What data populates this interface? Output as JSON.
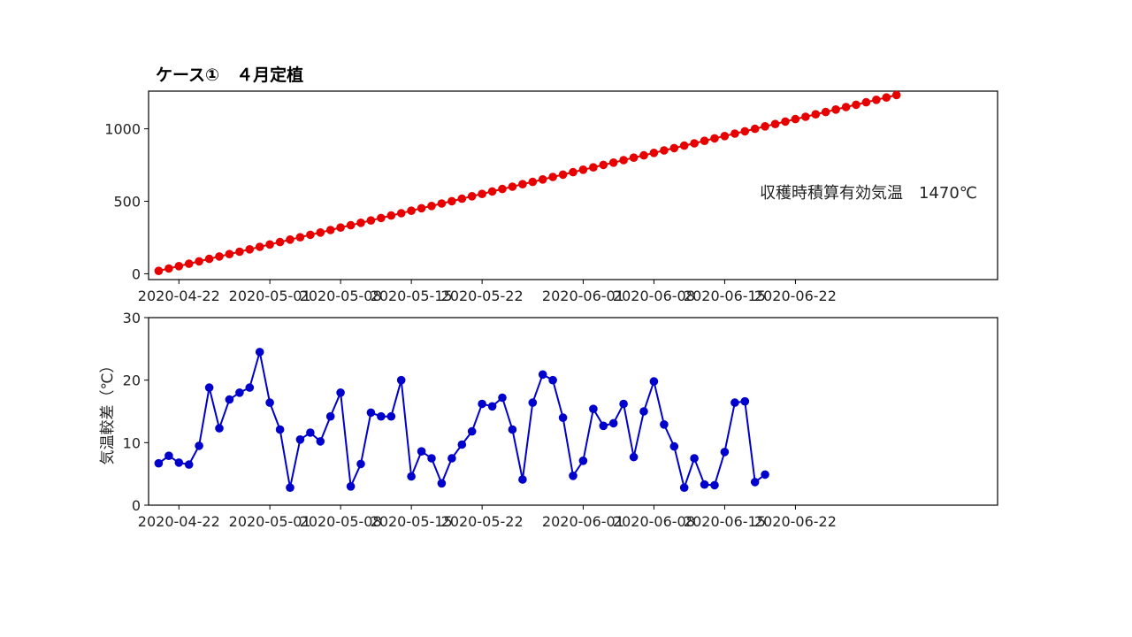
{
  "title": "ケース①　４月定植",
  "chart_data": [
    {
      "type": "line",
      "title": "ケース①　４月定植",
      "ylabel": "",
      "xlabel": "",
      "x_start": "2020-04-20",
      "ylim": [
        -40,
        1260
      ],
      "yticks": [
        0,
        500,
        1000
      ],
      "xticks": [
        "2020-04-22",
        "2020-05-01",
        "2020-05-08",
        "2020-05-15",
        "2020-05-22",
        "2020-06-01",
        "2020-06-08",
        "2020-06-15",
        "2020-06-22"
      ],
      "color": "#e60000",
      "annotation": "収穫時積算有効気温　1470℃",
      "series": [
        {
          "values": [
            20,
            36,
            53,
            69,
            86,
            103,
            119,
            136,
            152,
            169,
            186,
            202,
            219,
            236,
            252,
            269,
            285,
            302,
            319,
            335,
            352,
            368,
            385,
            402,
            418,
            435,
            452,
            468,
            485,
            501,
            518,
            535,
            551,
            568,
            585,
            601,
            618,
            634,
            651,
            668,
            684,
            701,
            718,
            734,
            751,
            767,
            784,
            801,
            817,
            834,
            851,
            867,
            884,
            900,
            917,
            934,
            950,
            967,
            983,
            1000,
            1017,
            1033,
            1050,
            1067,
            1083,
            1100,
            1116,
            1133,
            1150,
            1166,
            1183,
            1200,
            1216,
            1233
          ]
        }
      ]
    },
    {
      "type": "line",
      "ylabel": "気温較差（℃）",
      "xlabel": "",
      "x_start": "2020-04-20",
      "ylim": [
        0,
        30
      ],
      "yticks": [
        0,
        10,
        20,
        30
      ],
      "xticks": [
        "2020-04-22",
        "2020-05-01",
        "2020-05-08",
        "2020-05-15",
        "2020-05-22",
        "2020-06-01",
        "2020-06-08",
        "2020-06-15",
        "2020-06-22"
      ],
      "color": "#0000cc",
      "series": [
        {
          "values": [
            6.7,
            7.9,
            6.8,
            6.5,
            9.5,
            18.8,
            12.3,
            16.9,
            18.0,
            18.8,
            24.5,
            16.4,
            12.1,
            2.8,
            10.5,
            11.6,
            10.2,
            14.2,
            18.0,
            3.0,
            6.6,
            14.8,
            14.2,
            14.2,
            20.0,
            4.6,
            8.6,
            7.5,
            3.5,
            7.5,
            9.7,
            11.8,
            16.2,
            15.8,
            17.2,
            12.1,
            4.1,
            16.4,
            20.9,
            20.0,
            14.0,
            4.7,
            7.1,
            15.4,
            12.7,
            13.1,
            16.2,
            7.7,
            15.0,
            19.8,
            12.9,
            9.4,
            2.8,
            7.5,
            3.3,
            3.2,
            8.5,
            16.4,
            16.6,
            3.7,
            4.9
          ]
        }
      ]
    }
  ]
}
